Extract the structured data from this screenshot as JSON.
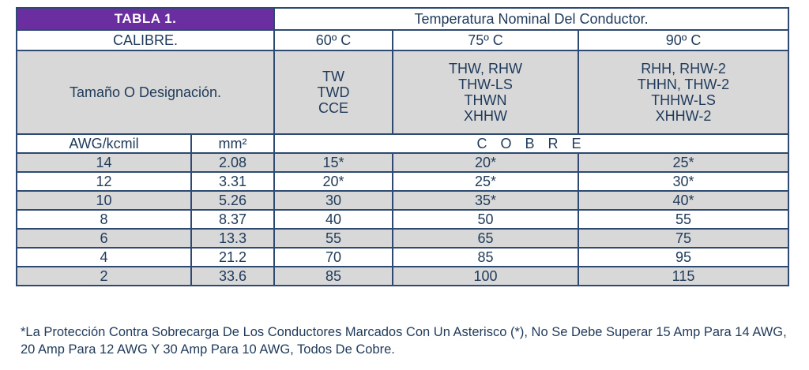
{
  "header": {
    "tabla_label": "TABLA 1.",
    "title": "Temperatura Nominal Del Conductor.",
    "calibre_label": "CALIBRE.",
    "temps": [
      "60º C",
      "75º C",
      "90º C"
    ],
    "designation_label": "Tamaño O Designación.",
    "types": [
      [
        "TW",
        "TWD",
        "CCE"
      ],
      [
        "THW, RHW",
        "THW-LS",
        "THWN",
        "XHHW"
      ],
      [
        "RHH, RHW-2",
        "THHN, THW-2",
        "THHW-LS",
        "XHHW-2"
      ]
    ],
    "awg_label": "AWG/kcmil",
    "mm2_label": "mm²",
    "material": "C O B R E"
  },
  "rows": [
    [
      "14",
      "2.08",
      "15*",
      "20*",
      "25*"
    ],
    [
      "12",
      "3.31",
      "20*",
      "25*",
      "30*"
    ],
    [
      "10",
      "5.26",
      "30",
      "35*",
      "40*"
    ],
    [
      "8",
      "8.37",
      "40",
      "50",
      "55"
    ],
    [
      "6",
      "13.3",
      "55",
      "65",
      "75"
    ],
    [
      "4",
      "21.2",
      "70",
      "85",
      "95"
    ],
    [
      "2",
      "33.6",
      "85",
      "100",
      "115"
    ]
  ],
  "note": "*La Protección Contra Sobrecarga De Los Conductores Marcados Con Un Asterisco (*), No Se Debe Superar 15 Amp Para 14 AWG, 20 Amp Para 12 AWG Y 30 Amp Para 10 AWG, Todos De Cobre.",
  "colors": {
    "header_purple": "#6a2ea0",
    "border_navy": "#2e4a72",
    "row_gray": "#d8d8d8"
  }
}
